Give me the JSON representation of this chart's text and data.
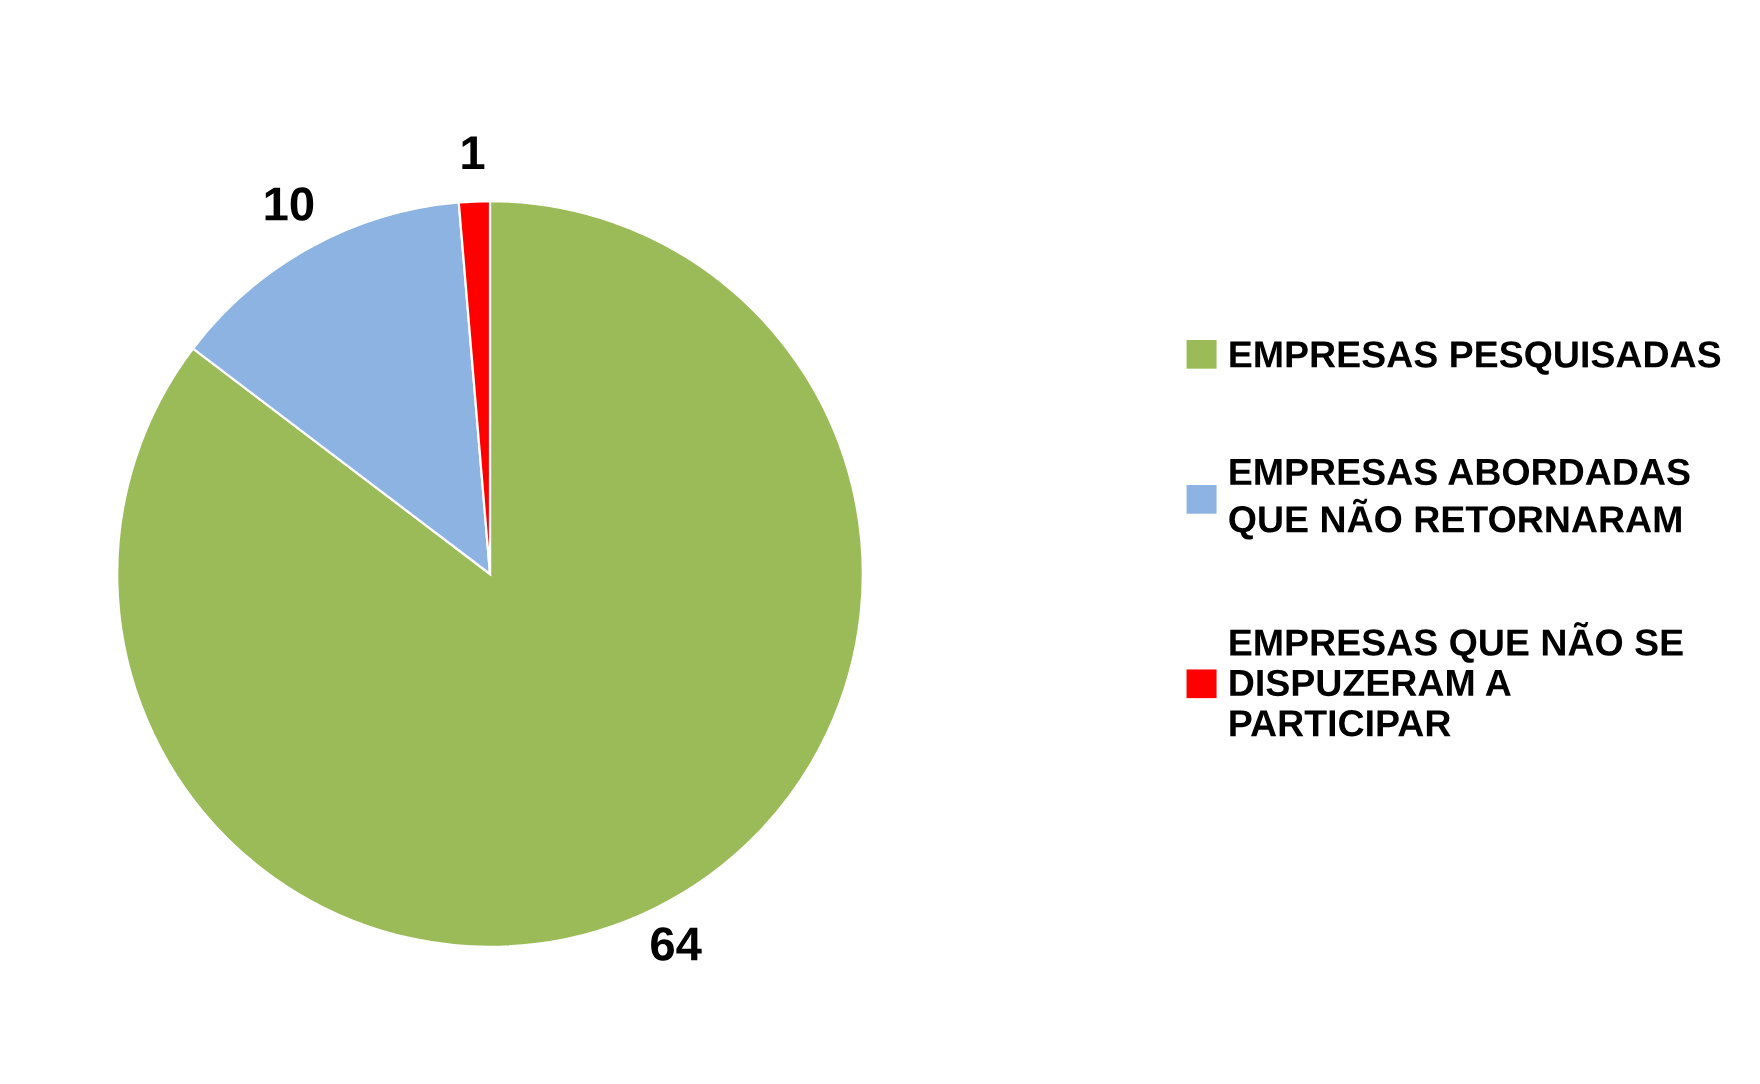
{
  "chart_data": {
    "type": "pie",
    "categories": [
      "EMPRESAS PESQUISADAS",
      "EMPRESAS ABORDADAS\nQUE NÃO RETORNARAM",
      "EMPRESAS QUE NÃO SE\nDISPUZERAM A\nPARTICIPAR"
    ],
    "values": [
      64,
      10,
      1
    ],
    "colors": [
      "#9bbb59",
      "#8db3e2",
      "#ff0000"
    ],
    "data_labels": true,
    "legend": "right"
  }
}
